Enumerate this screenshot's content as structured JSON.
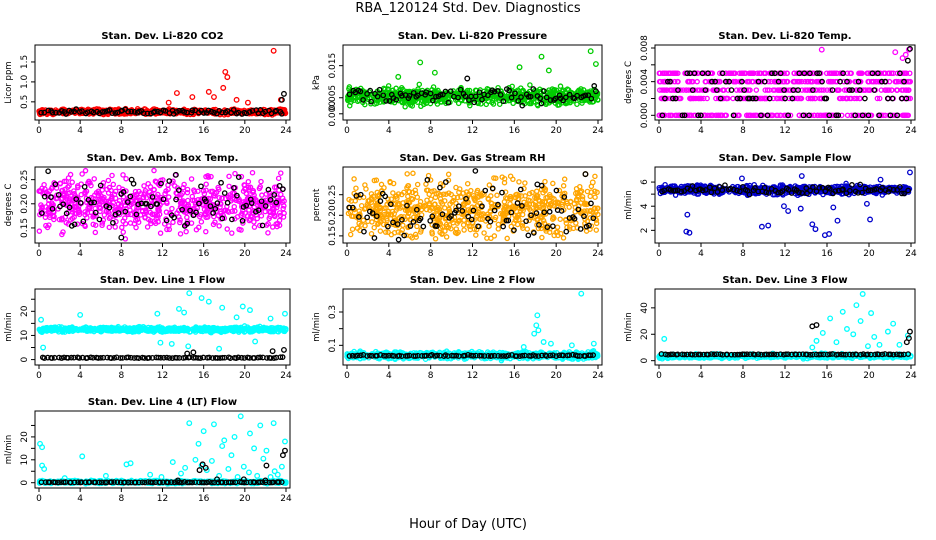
{
  "title": "RBA_120124  Std. Dev. Diagnostics",
  "xlabel": "Hour of Day (UTC)",
  "colors": {
    "secondary": "#000000"
  },
  "chart_data": [
    {
      "type": "scatter",
      "title": "Stan. Dev. Li-820 CO2",
      "ylabel": "Licor ppm",
      "color": "#ff0000",
      "xlim": [
        0,
        24
      ],
      "ylim": [
        0.12,
        1.85
      ],
      "yticks": [
        0.5,
        1.0,
        1.5
      ],
      "ytick_labels": [
        "0.5",
        "1.0",
        "1.5"
      ],
      "xticks": [
        0,
        4,
        8,
        12,
        16,
        20,
        24
      ],
      "base": 0.25,
      "noise": 0.06,
      "outliers": [
        [
          22.8,
          1.78
        ],
        [
          18.1,
          1.25
        ],
        [
          18.3,
          1.12
        ],
        [
          17.9,
          0.85
        ],
        [
          13.4,
          0.72
        ],
        [
          14.9,
          0.62
        ],
        [
          16.5,
          0.75
        ],
        [
          19.2,
          0.55
        ],
        [
          20.3,
          0.48
        ],
        [
          17.0,
          0.62
        ],
        [
          12.6,
          0.48
        ],
        [
          23.5,
          0.55
        ]
      ],
      "black_outliers": [
        [
          23.8,
          0.7
        ],
        [
          23.6,
          0.55
        ]
      ]
    },
    {
      "type": "scatter",
      "title": "Stan. Dev. Li-820 Pressure",
      "ylabel": "kPa",
      "color": "#00cc00",
      "xlim": [
        0,
        24
      ],
      "ylim": [
        -0.001,
        0.0205
      ],
      "yticks": [
        0.0,
        0.005,
        0.015
      ],
      "ytick_labels": [
        "0.000",
        "0.005",
        "0.015"
      ],
      "xticks": [
        0,
        4,
        8,
        12,
        16,
        20,
        24
      ],
      "base": 0.0055,
      "noise": 0.0025,
      "outliers": [
        [
          23.3,
          0.0195
        ],
        [
          18.6,
          0.0178
        ],
        [
          7.0,
          0.016
        ],
        [
          23.8,
          0.0155
        ],
        [
          16.5,
          0.0145
        ],
        [
          8.4,
          0.0128
        ],
        [
          19.3,
          0.0135
        ],
        [
          4.9,
          0.0115
        ]
      ],
      "black_outliers": [
        [
          11.5,
          0.011
        ],
        [
          23.8,
          0.007
        ]
      ]
    },
    {
      "type": "scatter",
      "title": "Stan. Dev. Li-820 Temp.",
      "ylabel": "degrees C",
      "color": "#ff00ff",
      "xlim": [
        0,
        24
      ],
      "ylim": [
        -0.0002,
        0.008
      ],
      "yticks": [
        0.0,
        0.002,
        0.004,
        0.006,
        0.008
      ],
      "ytick_labels": [
        "0.000",
        "",
        "0.004",
        "",
        "0.008"
      ],
      "xticks": [
        0,
        4,
        8,
        12,
        16,
        20,
        24
      ],
      "levels": [
        0.0,
        0.002,
        0.003,
        0.004,
        0.005
      ],
      "outliers": [
        [
          23.8,
          0.0078
        ],
        [
          23.5,
          0.0072
        ],
        [
          15.5,
          0.0078
        ],
        [
          22.5,
          0.0075
        ],
        [
          23.2,
          0.0068
        ]
      ],
      "black_outliers": [
        [
          23.9,
          0.0079
        ],
        [
          23.7,
          0.0065
        ]
      ]
    },
    {
      "type": "scatter",
      "title": "Stan. Dev. Amb. Box Temp.",
      "ylabel": "degrees C",
      "color": "#ff00ff",
      "xlim": [
        0,
        24
      ],
      "ylim": [
        0.125,
        0.27
      ],
      "yticks": [
        0.15,
        0.2,
        0.25
      ],
      "ytick_labels": [
        "0.15",
        "0.20",
        "0.25"
      ],
      "xticks": [
        0,
        4,
        8,
        12,
        16,
        20,
        24
      ],
      "base": 0.2,
      "noise": 0.055,
      "outliers": [],
      "black_outliers": [
        [
          13.3,
          0.26
        ],
        [
          9.0,
          0.25
        ],
        [
          8.0,
          0.13
        ]
      ]
    },
    {
      "type": "scatter",
      "title": "Stan. Dev. Gas Stream RH",
      "ylabel": "percent",
      "color": "#ffa500",
      "xlim": [
        0,
        24
      ],
      "ylim": [
        0.14,
        0.31
      ],
      "yticks": [
        0.15,
        0.2,
        0.25
      ],
      "ytick_labels": [
        "0.15",
        "0.20",
        "0.25"
      ],
      "xticks": [
        0,
        4,
        8,
        12,
        16,
        20,
        24
      ],
      "base": 0.215,
      "noise": 0.07,
      "outliers": [
        [
          22.8,
          0.3
        ],
        [
          23.5,
          0.28
        ]
      ],
      "black_outliers": [
        [
          22.8,
          0.3
        ],
        [
          18.2,
          0.275
        ]
      ]
    },
    {
      "type": "scatter",
      "title": "Stan. Dev. Sample Flow",
      "ylabel": "ml/min",
      "color": "#0000cc",
      "xlim": [
        0,
        24
      ],
      "ylim": [
        1.2,
        7.0
      ],
      "yticks": [
        2,
        3,
        4,
        5,
        6
      ],
      "ytick_labels": [
        "2",
        "",
        "4",
        "",
        "6"
      ],
      "xticks": [
        0,
        4,
        8,
        12,
        16,
        20,
        24
      ],
      "base": 5.35,
      "noise": 0.35,
      "outliers": [
        [
          2.6,
          1.9
        ],
        [
          2.9,
          1.8
        ],
        [
          9.8,
          2.3
        ],
        [
          10.4,
          2.4
        ],
        [
          15.8,
          1.6
        ],
        [
          16.2,
          1.7
        ],
        [
          14.6,
          2.5
        ],
        [
          14.9,
          2.1
        ],
        [
          17.0,
          2.8
        ],
        [
          20.1,
          2.9
        ],
        [
          2.7,
          3.3
        ],
        [
          12.3,
          3.6
        ],
        [
          11.9,
          4.0
        ],
        [
          13.5,
          3.8
        ],
        [
          16.6,
          3.9
        ],
        [
          19.8,
          4.2
        ],
        [
          13.6,
          6.5
        ],
        [
          23.9,
          6.8
        ],
        [
          21.1,
          6.2
        ],
        [
          7.9,
          6.3
        ]
      ],
      "black_outliers": []
    },
    {
      "type": "scatter",
      "title": "Stan. Dev. Line 1 Flow",
      "ylabel": "ml/min",
      "color": "#00ffff",
      "xlim": [
        0,
        24
      ],
      "ylim": [
        -1,
        28
      ],
      "yticks": [
        0,
        5,
        10,
        15,
        20,
        25
      ],
      "ytick_labels": [
        "0",
        "",
        "10",
        "",
        "20",
        ""
      ],
      "xticks": [
        0,
        4,
        8,
        12,
        16,
        20,
        24
      ],
      "base": 12.5,
      "noise": 1.0,
      "outliers": [
        [
          14.6,
          27.5
        ],
        [
          15.8,
          25.5
        ],
        [
          16.5,
          24.0
        ],
        [
          19.8,
          22.0
        ],
        [
          17.8,
          21.5
        ],
        [
          20.5,
          20.5
        ],
        [
          23.9,
          19.0
        ],
        [
          0.2,
          16.5
        ],
        [
          4.0,
          18.5
        ],
        [
          11.5,
          19.0
        ],
        [
          14.1,
          19.5
        ],
        [
          13.6,
          21.0
        ],
        [
          22.5,
          17.0
        ],
        [
          19.2,
          17.5
        ],
        [
          0.4,
          5.0
        ],
        [
          11.8,
          7.0
        ],
        [
          12.9,
          6.5
        ],
        [
          14.5,
          5.5
        ],
        [
          17.5,
          4.5
        ],
        [
          21.0,
          7.5
        ]
      ],
      "black_base": 0.6,
      "black_outliers": [
        [
          23.8,
          4.0
        ],
        [
          22.7,
          3.5
        ],
        [
          14.4,
          2.5
        ],
        [
          15.0,
          3.0
        ]
      ]
    },
    {
      "type": "scatter",
      "title": "Stan. Dev. Line 2 Flow",
      "ylabel": "ml/min",
      "color": "#00ffff",
      "xlim": [
        0,
        24
      ],
      "ylim": [
        0.0,
        0.42
      ],
      "yticks": [
        0.1,
        0.2,
        0.3
      ],
      "ytick_labels": [
        "0.1",
        "",
        "0.3"
      ],
      "xticks": [
        0,
        4,
        8,
        12,
        16,
        20,
        24
      ],
      "base": 0.04,
      "noise": 0.02,
      "outliers": [
        [
          22.4,
          0.41
        ],
        [
          18.2,
          0.28
        ],
        [
          18.1,
          0.22
        ],
        [
          18.3,
          0.19
        ],
        [
          17.9,
          0.17
        ],
        [
          18.8,
          0.12
        ],
        [
          16.9,
          0.09
        ],
        [
          19.5,
          0.11
        ],
        [
          21.5,
          0.1
        ],
        [
          23.6,
          0.11
        ]
      ],
      "black_base": 0.035,
      "black_outliers": []
    },
    {
      "type": "scatter",
      "title": "Stan. Dev. Line 3 Flow",
      "ylabel": "ml/min",
      "color": "#00ffff",
      "xlim": [
        0,
        24
      ],
      "ylim": [
        -1,
        52
      ],
      "yticks": [
        0,
        20,
        40
      ],
      "ytick_labels": [
        "0",
        "20",
        "40"
      ],
      "xticks": [
        0,
        4,
        8,
        12,
        16,
        20,
        24
      ],
      "base": 3.5,
      "noise": 1.5,
      "outliers": [
        [
          19.4,
          50.5
        ],
        [
          18.8,
          42.0
        ],
        [
          17.5,
          37.0
        ],
        [
          20.2,
          36.0
        ],
        [
          16.3,
          32.0
        ],
        [
          19.2,
          30.0
        ],
        [
          22.3,
          28.0
        ],
        [
          21.8,
          22.0
        ],
        [
          15.6,
          21.0
        ],
        [
          17.9,
          24.0
        ],
        [
          15.0,
          15.0
        ],
        [
          18.5,
          20.0
        ],
        [
          14.6,
          10.0
        ],
        [
          22.9,
          12.0
        ],
        [
          0.5,
          16.5
        ],
        [
          20.5,
          18.0
        ],
        [
          23.7,
          19.0
        ],
        [
          16.9,
          14.0
        ],
        [
          21.0,
          12.0
        ],
        [
          19.9,
          11.0
        ]
      ],
      "black_base": 4.5,
      "black_outliers": [
        [
          23.9,
          22.0
        ],
        [
          23.8,
          17.0
        ],
        [
          15.0,
          27.0
        ],
        [
          14.6,
          26.0
        ],
        [
          23.6,
          14.0
        ]
      ]
    },
    {
      "type": "scatter",
      "title": "Stan. Dev. Line 4 (LT) Flow",
      "ylabel": "ml/min",
      "color": "#00ffff",
      "xlim": [
        0,
        24
      ],
      "ylim": [
        -1,
        30
      ],
      "yticks": [
        0,
        5,
        10,
        15,
        20,
        25
      ],
      "ytick_labels": [
        "0",
        "",
        "10",
        "",
        "20",
        ""
      ],
      "xticks": [
        0,
        4,
        8,
        12,
        16,
        20,
        24
      ],
      "base": 0.3,
      "noise": 0.6,
      "outliers": [
        [
          19.6,
          29.0
        ],
        [
          14.6,
          26.0
        ],
        [
          17.0,
          25.5
        ],
        [
          21.5,
          25.0
        ],
        [
          22.8,
          26.0
        ],
        [
          16.0,
          22.5
        ],
        [
          20.5,
          21.5
        ],
        [
          19.0,
          20.0
        ],
        [
          18.0,
          18.5
        ],
        [
          23.9,
          18.0
        ],
        [
          15.5,
          17.0
        ],
        [
          17.8,
          16.0
        ],
        [
          20.9,
          15.0
        ],
        [
          22.1,
          14.0
        ],
        [
          0.3,
          15.5
        ],
        [
          0.1,
          17.0
        ],
        [
          4.2,
          11.5
        ],
        [
          13.0,
          9.0
        ],
        [
          8.5,
          8.0
        ],
        [
          8.9,
          8.5
        ],
        [
          15.2,
          10.0
        ],
        [
          16.8,
          9.5
        ],
        [
          18.7,
          12.0
        ],
        [
          21.8,
          10.5
        ],
        [
          19.9,
          7.0
        ],
        [
          0.3,
          7.5
        ],
        [
          0.5,
          6.0
        ],
        [
          2.5,
          2.0
        ],
        [
          6.5,
          3.0
        ],
        [
          10.8,
          3.5
        ],
        [
          11.9,
          2.5
        ],
        [
          13.8,
          4.0
        ],
        [
          16.3,
          5.5
        ],
        [
          18.4,
          6.0
        ],
        [
          20.4,
          4.5
        ],
        [
          22.9,
          5.0
        ],
        [
          23.6,
          7.0
        ],
        [
          14.2,
          6.5
        ],
        [
          15.8,
          7.5
        ],
        [
          17.5,
          3.0
        ],
        [
          19.3,
          2.5
        ],
        [
          21.2,
          3.0
        ],
        [
          22.5,
          2.5
        ],
        [
          23.2,
          3.5
        ]
      ],
      "black_base": 0.1,
      "black_outliers": [
        [
          23.9,
          14.0
        ],
        [
          23.7,
          12.0
        ],
        [
          15.9,
          8.0
        ],
        [
          16.2,
          6.5
        ],
        [
          22.1,
          7.5
        ],
        [
          15.6,
          5.5
        ],
        [
          19.9,
          1.5
        ],
        [
          22.0,
          1.0
        ],
        [
          13.5,
          1.0
        ],
        [
          17.3,
          1.5
        ]
      ]
    }
  ]
}
